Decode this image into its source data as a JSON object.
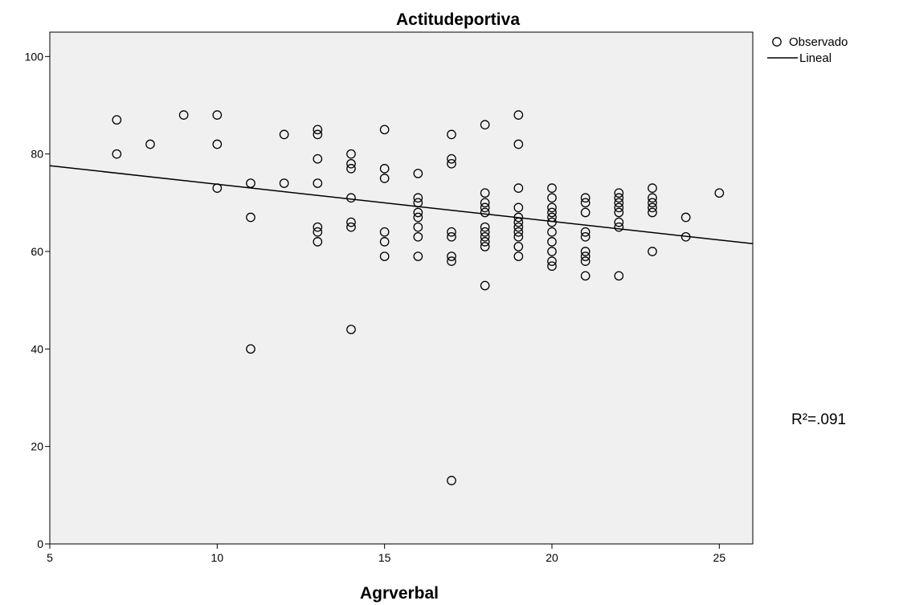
{
  "chart_data": {
    "type": "scatter",
    "title": "Actitudeportiva",
    "xlabel": "Agrverbal",
    "ylabel": "",
    "xlim": [
      5,
      26
    ],
    "ylim": [
      0,
      105
    ],
    "x_ticks": [
      5,
      10,
      15,
      20,
      25
    ],
    "y_ticks": [
      0,
      20,
      40,
      60,
      80,
      100
    ],
    "background": "#f0f0f0",
    "marker_color": "#000000",
    "grid": false,
    "legend": {
      "placement": "top-right",
      "entries": [
        {
          "label": "Observado",
          "marker": "circle"
        },
        {
          "label": "Lineal",
          "marker": "line"
        }
      ]
    },
    "annotation": "R²=.091",
    "fit_line": {
      "x": [
        5,
        26
      ],
      "y": [
        77.6,
        61.6
      ]
    },
    "series": [
      {
        "name": "Observado",
        "points": [
          [
            7,
            87
          ],
          [
            7,
            80
          ],
          [
            8,
            82
          ],
          [
            9,
            88
          ],
          [
            10,
            88
          ],
          [
            10,
            82
          ],
          [
            10,
            73
          ],
          [
            11,
            74
          ],
          [
            11,
            67
          ],
          [
            11,
            40
          ],
          [
            12,
            84
          ],
          [
            12,
            74
          ],
          [
            13,
            85
          ],
          [
            13,
            84
          ],
          [
            13,
            79
          ],
          [
            13,
            74
          ],
          [
            13,
            65
          ],
          [
            13,
            64
          ],
          [
            13,
            62
          ],
          [
            14,
            80
          ],
          [
            14,
            78
          ],
          [
            14,
            77
          ],
          [
            14,
            71
          ],
          [
            14,
            66
          ],
          [
            14,
            65
          ],
          [
            14,
            44
          ],
          [
            15,
            85
          ],
          [
            15,
            77
          ],
          [
            15,
            75
          ],
          [
            15,
            64
          ],
          [
            15,
            62
          ],
          [
            15,
            59
          ],
          [
            16,
            76
          ],
          [
            16,
            71
          ],
          [
            16,
            70
          ],
          [
            16,
            68
          ],
          [
            16,
            67
          ],
          [
            16,
            65
          ],
          [
            16,
            63
          ],
          [
            16,
            59
          ],
          [
            17,
            84
          ],
          [
            17,
            79
          ],
          [
            17,
            78
          ],
          [
            17,
            64
          ],
          [
            17,
            63
          ],
          [
            17,
            59
          ],
          [
            17,
            58
          ],
          [
            17,
            13
          ],
          [
            18,
            86
          ],
          [
            18,
            72
          ],
          [
            18,
            70
          ],
          [
            18,
            69
          ],
          [
            18,
            68
          ],
          [
            18,
            65
          ],
          [
            18,
            64
          ],
          [
            18,
            63
          ],
          [
            18,
            62
          ],
          [
            18,
            61
          ],
          [
            18,
            53
          ],
          [
            19,
            88
          ],
          [
            19,
            82
          ],
          [
            19,
            73
          ],
          [
            19,
            69
          ],
          [
            19,
            67
          ],
          [
            19,
            66
          ],
          [
            19,
            65
          ],
          [
            19,
            64
          ],
          [
            19,
            63
          ],
          [
            19,
            61
          ],
          [
            19,
            59
          ],
          [
            20,
            73
          ],
          [
            20,
            71
          ],
          [
            20,
            69
          ],
          [
            20,
            68
          ],
          [
            20,
            67
          ],
          [
            20,
            66
          ],
          [
            20,
            64
          ],
          [
            20,
            62
          ],
          [
            20,
            60
          ],
          [
            20,
            58
          ],
          [
            20,
            57
          ],
          [
            21,
            71
          ],
          [
            21,
            70
          ],
          [
            21,
            68
          ],
          [
            21,
            64
          ],
          [
            21,
            63
          ],
          [
            21,
            60
          ],
          [
            21,
            59
          ],
          [
            21,
            58
          ],
          [
            21,
            55
          ],
          [
            22,
            72
          ],
          [
            22,
            71
          ],
          [
            22,
            70
          ],
          [
            22,
            69
          ],
          [
            22,
            68
          ],
          [
            22,
            66
          ],
          [
            22,
            65
          ],
          [
            22,
            55
          ],
          [
            23,
            73
          ],
          [
            23,
            71
          ],
          [
            23,
            70
          ],
          [
            23,
            69
          ],
          [
            23,
            68
          ],
          [
            23,
            60
          ],
          [
            24,
            67
          ],
          [
            24,
            63
          ],
          [
            25,
            72
          ]
        ]
      }
    ]
  }
}
